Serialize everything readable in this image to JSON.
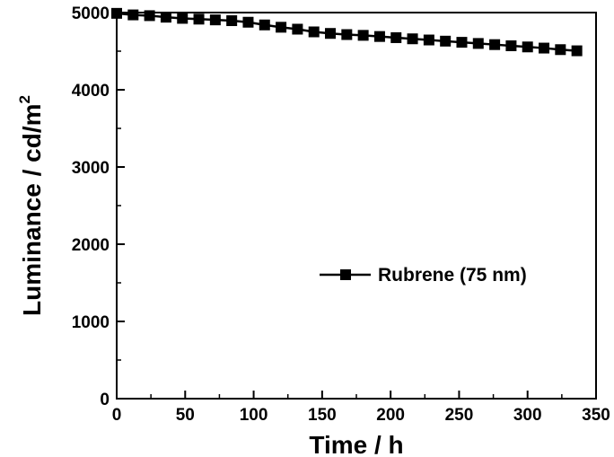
{
  "chart_data": {
    "type": "line",
    "xlabel": "Time / h",
    "ylabel_main": "Luminance / cd/m",
    "ylabel_sup": "2",
    "xlim": [
      0,
      350
    ],
    "ylim": [
      0,
      5000
    ],
    "x_ticks": [
      0,
      50,
      100,
      150,
      200,
      250,
      300,
      350
    ],
    "y_ticks": [
      0,
      1000,
      2000,
      3000,
      4000,
      5000
    ],
    "x_tick_labels": [
      "0",
      "50",
      "100",
      "150",
      "200",
      "250",
      "300",
      "350"
    ],
    "y_tick_labels": [
      "0",
      "1000",
      "2000",
      "3000",
      "4000",
      "5000"
    ],
    "grid": false,
    "legend_position": "center-right",
    "series": [
      {
        "name": "Rubrene (75 nm)",
        "color": "#000000",
        "marker": "square",
        "x": [
          0,
          12,
          24,
          36,
          48,
          60,
          72,
          84,
          96,
          108,
          120,
          132,
          144,
          156,
          168,
          180,
          192,
          204,
          216,
          228,
          240,
          252,
          264,
          276,
          288,
          300,
          312,
          324,
          336
        ],
        "y": [
          4990,
          4970,
          4960,
          4940,
          4925,
          4915,
          4905,
          4895,
          4875,
          4840,
          4810,
          4785,
          4750,
          4730,
          4715,
          4705,
          4690,
          4675,
          4660,
          4645,
          4630,
          4615,
          4600,
          4585,
          4570,
          4555,
          4540,
          4520,
          4505
        ]
      }
    ]
  }
}
